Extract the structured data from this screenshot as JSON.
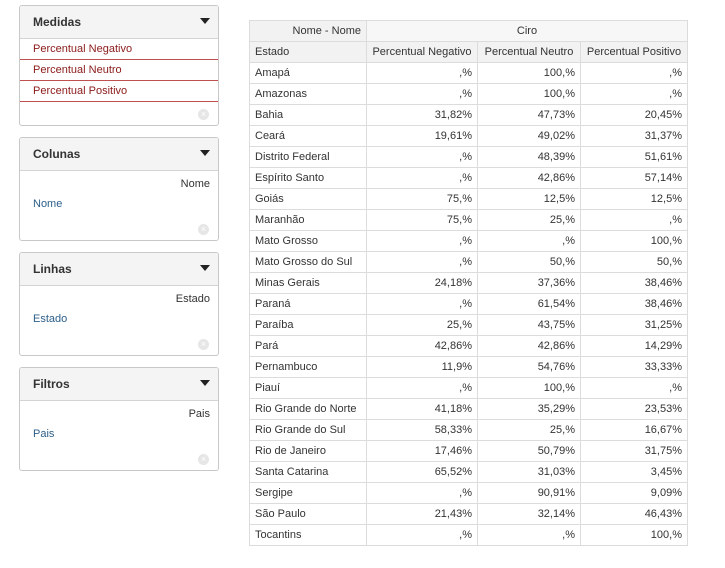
{
  "panels": {
    "medidas": {
      "title": "Medidas",
      "items": [
        "Percentual Negativo",
        "Percentual Neutro",
        "Percentual Positivo"
      ]
    },
    "colunas": {
      "title": "Colunas",
      "right_label": "Nome",
      "link_label": "Nome"
    },
    "linhas": {
      "title": "Linhas",
      "right_label": "Estado",
      "link_label": "Estado"
    },
    "filtros": {
      "title": "Filtros",
      "right_label": "Pais",
      "link_label": "Pais"
    }
  },
  "table": {
    "corner_label": "Nome - Nome",
    "group_label": "Ciro",
    "row_header": "Estado",
    "columns": [
      "Percentual Negativo",
      "Percentual Neutro",
      "Percentual Positivo"
    ],
    "rows": [
      {
        "estado": "Amapá",
        "neg": ",%",
        "neu": "100,%",
        "pos": ",%"
      },
      {
        "estado": "Amazonas",
        "neg": ",%",
        "neu": "100,%",
        "pos": ",%"
      },
      {
        "estado": "Bahia",
        "neg": "31,82%",
        "neu": "47,73%",
        "pos": "20,45%"
      },
      {
        "estado": "Ceará",
        "neg": "19,61%",
        "neu": "49,02%",
        "pos": "31,37%"
      },
      {
        "estado": "Distrito Federal",
        "neg": ",%",
        "neu": "48,39%",
        "pos": "51,61%"
      },
      {
        "estado": "Espírito Santo",
        "neg": ",%",
        "neu": "42,86%",
        "pos": "57,14%"
      },
      {
        "estado": "Goiás",
        "neg": "75,%",
        "neu": "12,5%",
        "pos": "12,5%"
      },
      {
        "estado": "Maranhão",
        "neg": "75,%",
        "neu": "25,%",
        "pos": ",%"
      },
      {
        "estado": "Mato Grosso",
        "neg": ",%",
        "neu": ",%",
        "pos": "100,%"
      },
      {
        "estado": "Mato Grosso do Sul",
        "neg": ",%",
        "neu": "50,%",
        "pos": "50,%"
      },
      {
        "estado": "Minas Gerais",
        "neg": "24,18%",
        "neu": "37,36%",
        "pos": "38,46%"
      },
      {
        "estado": "Paraná",
        "neg": ",%",
        "neu": "61,54%",
        "pos": "38,46%"
      },
      {
        "estado": "Paraíba",
        "neg": "25,%",
        "neu": "43,75%",
        "pos": "31,25%"
      },
      {
        "estado": "Pará",
        "neg": "42,86%",
        "neu": "42,86%",
        "pos": "14,29%"
      },
      {
        "estado": "Pernambuco",
        "neg": "11,9%",
        "neu": "54,76%",
        "pos": "33,33%"
      },
      {
        "estado": "Piauí",
        "neg": ",%",
        "neu": "100,%",
        "pos": ",%"
      },
      {
        "estado": "Rio Grande do Norte",
        "neg": "41,18%",
        "neu": "35,29%",
        "pos": "23,53%"
      },
      {
        "estado": "Rio Grande do Sul",
        "neg": "58,33%",
        "neu": "25,%",
        "pos": "16,67%"
      },
      {
        "estado": "Rio de Janeiro",
        "neg": "17,46%",
        "neu": "50,79%",
        "pos": "31,75%"
      },
      {
        "estado": "Santa Catarina",
        "neg": "65,52%",
        "neu": "31,03%",
        "pos": "3,45%"
      },
      {
        "estado": "Sergipe",
        "neg": ",%",
        "neu": "90,91%",
        "pos": "9,09%"
      },
      {
        "estado": "São Paulo",
        "neg": "21,43%",
        "neu": "32,14%",
        "pos": "46,43%"
      },
      {
        "estado": "Tocantins",
        "neg": ",%",
        "neu": ",%",
        "pos": "100,%"
      }
    ]
  }
}
